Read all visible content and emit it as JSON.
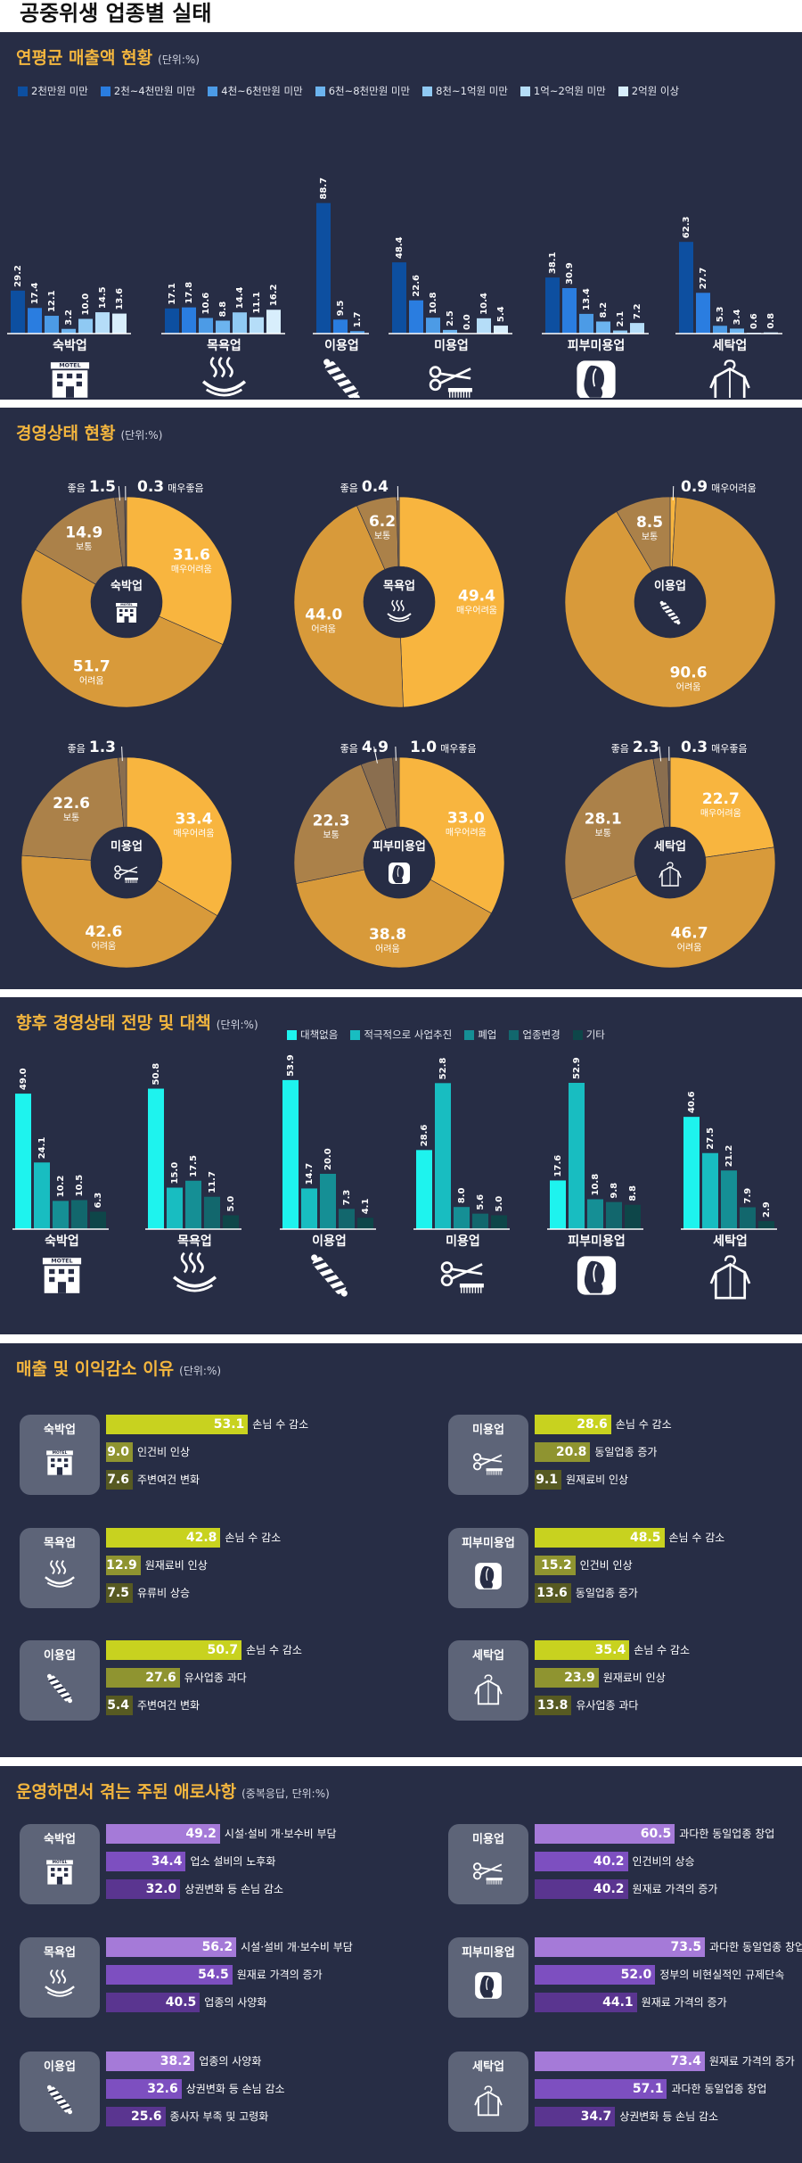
{
  "title": "공중위생 업종별 실태",
  "industries": [
    "숙박업",
    "목욕업",
    "이용업",
    "미용업",
    "피부미용업",
    "세탁업"
  ],
  "s1": {
    "title": "연평균 매출액 현황",
    "unit": "(단위:%)",
    "legend": [
      "2천만원 미만",
      "2천~4천만원 미만",
      "4천~6천만원 미만",
      "6천~8천만원 미만",
      "8천~1억원 미만",
      "1억~2억원 미만",
      "2억원 이상"
    ],
    "colors": [
      "#0d4fa0",
      "#2a7de0",
      "#4c9be6",
      "#6cb4ef",
      "#8fc9f3",
      "#b5ddf8",
      "#d8eefc"
    ]
  },
  "s2": {
    "title": "경영상태 현황",
    "unit": "(단위:%)"
  },
  "s3": {
    "title": "향후 경영상태 전망 및 대책",
    "unit": "(단위:%)",
    "legend": [
      "대책없음",
      "적극적으로 사업추진",
      "폐업",
      "업종변경",
      "기타"
    ],
    "colors": [
      "#1ef3ee",
      "#18bdc1",
      "#158f95",
      "#12676d",
      "#0e4649"
    ]
  },
  "s4": {
    "title": "매출 및 이익감소 이유",
    "unit": "(단위:%)",
    "colors": [
      "#c8d21f",
      "#8f9430",
      "#575a22"
    ]
  },
  "s5": {
    "title": "운영하면서 겪는 주된 애로사항",
    "unit": "(중복응답, 단위:%)",
    "colors": [
      "#a57ad8",
      "#7d4fc0",
      "#5a3590"
    ]
  },
  "chart_data": [
    {
      "type": "bar",
      "title": "연평균 매출액 현황",
      "categories": [
        "숙박업",
        "목욕업",
        "이용업",
        "미용업",
        "피부미용업",
        "세탁업"
      ],
      "series": [
        {
          "name": "2천만원 미만",
          "values": [
            29.2,
            17.1,
            88.7,
            48.4,
            38.1,
            62.3
          ]
        },
        {
          "name": "2천~4천만원 미만",
          "values": [
            17.4,
            17.8,
            9.5,
            22.6,
            30.9,
            27.7
          ]
        },
        {
          "name": "4천~6천만원 미만",
          "values": [
            12.1,
            10.6,
            1.7,
            10.8,
            13.4,
            5.3
          ]
        },
        {
          "name": "6천~8천만원 미만",
          "values": [
            3.2,
            8.8,
            null,
            2.5,
            8.2,
            3.4
          ]
        },
        {
          "name": "8천~1억원 미만",
          "values": [
            10.0,
            14.4,
            null,
            0.0,
            2.1,
            0.6
          ]
        },
        {
          "name": "1억~2억원 미만",
          "values": [
            14.5,
            11.1,
            null,
            10.4,
            7.2,
            0.8
          ]
        },
        {
          "name": "2억원 이상",
          "values": [
            13.6,
            16.2,
            null,
            5.4,
            null,
            null
          ]
        }
      ]
    },
    {
      "type": "pie",
      "title": "경영상태 현황",
      "charts": [
        {
          "name": "숙박업",
          "slices": [
            {
              "label": "매우어려움",
              "value": 31.6
            },
            {
              "label": "어려움",
              "value": 51.7
            },
            {
              "label": "보통",
              "value": 14.9
            },
            {
              "label": "좋음",
              "value": 1.5
            },
            {
              "label": "매우좋음",
              "value": 0.3
            }
          ]
        },
        {
          "name": "목욕업",
          "slices": [
            {
              "label": "매우어려움",
              "value": 49.4
            },
            {
              "label": "어려움",
              "value": 44.0
            },
            {
              "label": "보통",
              "value": 6.2
            },
            {
              "label": "좋음",
              "value": 0.4
            }
          ]
        },
        {
          "name": "이용업",
          "slices": [
            {
              "label": "매우어려움",
              "value": 0.9
            },
            {
              "label": "어려움",
              "value": 90.6
            },
            {
              "label": "보통",
              "value": 8.5
            }
          ]
        },
        {
          "name": "미용업",
          "slices": [
            {
              "label": "매우어려움",
              "value": 33.4
            },
            {
              "label": "어려움",
              "value": 42.6
            },
            {
              "label": "보통",
              "value": 22.6
            },
            {
              "label": "좋음",
              "value": 1.3
            }
          ]
        },
        {
          "name": "피부미용업",
          "slices": [
            {
              "label": "매우어려움",
              "value": 33.0
            },
            {
              "label": "어려움",
              "value": 38.8
            },
            {
              "label": "보통",
              "value": 22.3
            },
            {
              "label": "좋음",
              "value": 4.9
            },
            {
              "label": "매우좋음",
              "value": 1.0
            }
          ]
        },
        {
          "name": "세탁업",
          "slices": [
            {
              "label": "매우어려움",
              "value": 22.7
            },
            {
              "label": "어려움",
              "value": 46.7
            },
            {
              "label": "보통",
              "value": 28.1
            },
            {
              "label": "좋음",
              "value": 2.3
            },
            {
              "label": "매우좋음",
              "value": 0.3
            }
          ]
        }
      ]
    },
    {
      "type": "bar",
      "title": "향후 경영상태 전망 및 대책",
      "categories": [
        "숙박업",
        "목욕업",
        "이용업",
        "미용업",
        "피부미용업",
        "세탁업"
      ],
      "series": [
        {
          "name": "대책없음",
          "values": [
            49.0,
            50.8,
            53.9,
            28.6,
            17.6,
            40.6
          ]
        },
        {
          "name": "적극적으로 사업추진",
          "values": [
            24.1,
            15.0,
            14.7,
            52.8,
            52.9,
            27.5
          ]
        },
        {
          "name": "폐업",
          "values": [
            10.2,
            17.5,
            20.0,
            8.0,
            10.8,
            21.2
          ]
        },
        {
          "name": "업종변경",
          "values": [
            10.5,
            11.7,
            7.3,
            5.6,
            9.8,
            7.9
          ]
        },
        {
          "name": "기타",
          "values": [
            6.3,
            5.0,
            4.1,
            5.0,
            8.8,
            2.9
          ]
        }
      ]
    },
    {
      "type": "bar",
      "title": "매출 및 이익감소 이유",
      "groups": [
        {
          "name": "숙박업",
          "items": [
            {
              "label": "손님 수 감소",
              "value": 53.1
            },
            {
              "label": "인건비 인상",
              "value": 9.0
            },
            {
              "label": "주변여건 변화",
              "value": 7.6
            }
          ]
        },
        {
          "name": "미용업",
          "items": [
            {
              "label": "손님 수 감소",
              "value": 28.6
            },
            {
              "label": "동일업종 증가",
              "value": 20.8
            },
            {
              "label": "원재료비 인상",
              "value": 9.1
            }
          ]
        },
        {
          "name": "목욕업",
          "items": [
            {
              "label": "손님 수 감소",
              "value": 42.8
            },
            {
              "label": "원재료비 인상",
              "value": 12.9
            },
            {
              "label": "유류비 상승",
              "value": 7.5
            }
          ]
        },
        {
          "name": "피부미용업",
          "items": [
            {
              "label": "손님 수 감소",
              "value": 48.5
            },
            {
              "label": "인건비 인상",
              "value": 15.2
            },
            {
              "label": "동일업종 증가",
              "value": 13.6
            }
          ]
        },
        {
          "name": "이용업",
          "items": [
            {
              "label": "손님 수 감소",
              "value": 50.7
            },
            {
              "label": "유사업종 과다",
              "value": 27.6
            },
            {
              "label": "주변여건 변화",
              "value": 5.4
            }
          ]
        },
        {
          "name": "세탁업",
          "items": [
            {
              "label": "손님 수 감소",
              "value": 35.4
            },
            {
              "label": "원재료비 인상",
              "value": 23.9
            },
            {
              "label": "유사업종 과다",
              "value": 13.8
            }
          ]
        }
      ]
    },
    {
      "type": "bar",
      "title": "운영하면서 겪는 주된 애로사항",
      "groups": [
        {
          "name": "숙박업",
          "items": [
            {
              "label": "시설·설비 개·보수비 부담",
              "value": 49.2
            },
            {
              "label": "업소 설비의 노후화",
              "value": 34.4
            },
            {
              "label": "상권변화 등 손님 감소",
              "value": 32.0
            }
          ]
        },
        {
          "name": "미용업",
          "items": [
            {
              "label": "과다한 동일업종 창업",
              "value": 60.5
            },
            {
              "label": "인건비의 상승",
              "value": 40.2
            },
            {
              "label": "원재료 가격의 증가",
              "value": 40.2
            }
          ]
        },
        {
          "name": "목욕업",
          "items": [
            {
              "label": "시설·설비 개·보수비 부담",
              "value": 56.2
            },
            {
              "label": "원재료 가격의 증가",
              "value": 54.5
            },
            {
              "label": "업종의 사양화",
              "value": 40.5
            }
          ]
        },
        {
          "name": "피부미용업",
          "items": [
            {
              "label": "과다한 동일업종 창업",
              "value": 73.5
            },
            {
              "label": "정부의 비현실적인 규제단속",
              "value": 52.0
            },
            {
              "label": "원재료 가격의 증가",
              "value": 44.1
            }
          ]
        },
        {
          "name": "이용업",
          "items": [
            {
              "label": "업종의 사양화",
              "value": 38.2
            },
            {
              "label": "상권변화 등 손님 감소",
              "value": 32.6
            },
            {
              "label": "종사자 부족 및 고령화",
              "value": 25.6
            }
          ]
        },
        {
          "name": "세탁업",
          "items": [
            {
              "label": "원재료 가격의 증가",
              "value": 73.4
            },
            {
              "label": "과다한 동일업종 창업",
              "value": 57.1
            },
            {
              "label": "상권변화 등 손님 감소",
              "value": 34.7
            }
          ]
        }
      ]
    }
  ]
}
